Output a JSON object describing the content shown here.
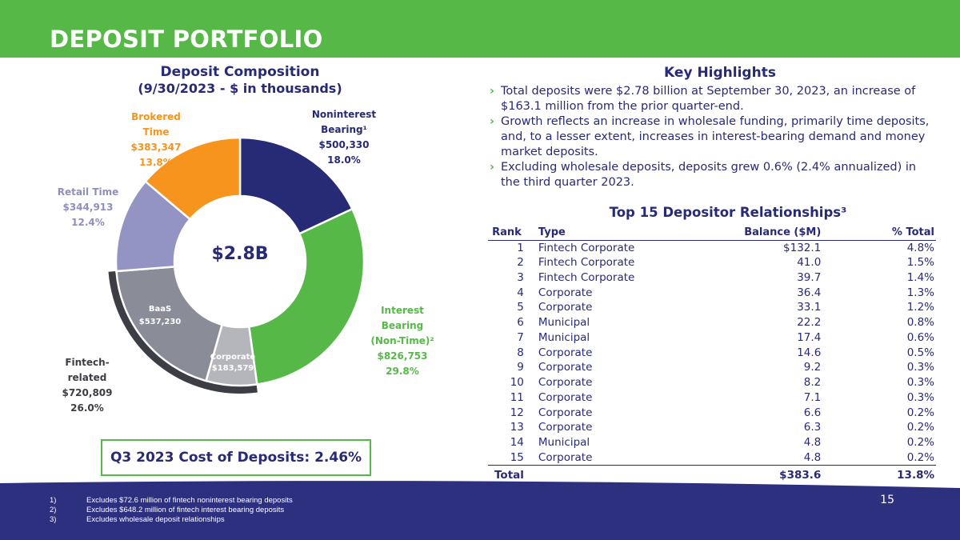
{
  "header": {
    "title": "DEPOSIT PORTFOLIO"
  },
  "composition": {
    "title": "Deposit Composition",
    "subtitle": "(9/30/2023 - $ in thousands)",
    "center_label": "$2.8B",
    "segments": [
      {
        "name_lines": [
          "Noninterest",
          "Bearing¹"
        ],
        "amount": "$500,330",
        "pct": "18.0%"
      },
      {
        "name_lines": [
          "Interest Bearing",
          "(Non-Time)²"
        ],
        "amount": "$826,753",
        "pct": "29.8%"
      },
      {
        "name_lines": [
          "Corporate"
        ],
        "amount": "$183,579"
      },
      {
        "name_lines": [
          "BaaS"
        ],
        "amount": "$537,230"
      },
      {
        "name_lines": [
          "Retail Time"
        ],
        "amount": "$344,913",
        "pct": "12.4%"
      },
      {
        "name_lines": [
          "Brokered Time"
        ],
        "amount": "$383,347",
        "pct": "13.8%"
      }
    ],
    "group": {
      "name": "Fintech-related",
      "amount": "$720,809",
      "pct": "26.0%"
    }
  },
  "chart_data": {
    "type": "pie",
    "title": "Deposit Composition (9/30/2023 - $ in thousands)",
    "center_label": "$2.8B",
    "categories": [
      "Noninterest Bearing",
      "Interest Bearing (Non-Time)",
      "Corporate",
      "BaaS",
      "Retail Time",
      "Brokered Time"
    ],
    "values": [
      500330,
      826753,
      183579,
      537230,
      344913,
      383347
    ],
    "colors": [
      "#272a75",
      "#56b947",
      "#b4b6bc",
      "#8a8d97",
      "#9394c3",
      "#f7941d"
    ],
    "group": {
      "name": "Fintech-related",
      "members": [
        "Corporate",
        "BaaS"
      ],
      "value": 720809,
      "color": "#3c3d45"
    }
  },
  "cost_box": {
    "text": "Q3 2023 Cost of Deposits: 2.46%"
  },
  "highlights": {
    "title": "Key Highlights",
    "bullets": [
      "Total deposits were $2.78 billion at September 30, 2023, an increase of $163.1 million from the prior quarter-end.",
      "Growth reflects an increase in wholesale funding, primarily time deposits, and, to a lesser extent, increases in interest-bearing demand and money market deposits.",
      "Excluding wholesale deposits, deposits grew 0.6% (2.4% annualized) in the third quarter 2023."
    ]
  },
  "top15": {
    "title": "Top 15 Depositor Relationships³",
    "headers": {
      "rank": "Rank",
      "type": "Type",
      "balance": "Balance ($M)",
      "pct": "% Total"
    },
    "rows": [
      {
        "rank": "1",
        "type": "Fintech Corporate",
        "balance": "$132.1",
        "pct": "4.8%"
      },
      {
        "rank": "2",
        "type": "Fintech Corporate",
        "balance": "41.0",
        "pct": "1.5%"
      },
      {
        "rank": "3",
        "type": "Fintech Corporate",
        "balance": "39.7",
        "pct": "1.4%"
      },
      {
        "rank": "4",
        "type": "Corporate",
        "balance": "36.4",
        "pct": "1.3%"
      },
      {
        "rank": "5",
        "type": "Corporate",
        "balance": "33.1",
        "pct": "1.2%"
      },
      {
        "rank": "6",
        "type": "Municipal",
        "balance": "22.2",
        "pct": "0.8%"
      },
      {
        "rank": "7",
        "type": "Municipal",
        "balance": "17.4",
        "pct": "0.6%"
      },
      {
        "rank": "8",
        "type": "Corporate",
        "balance": "14.6",
        "pct": "0.5%"
      },
      {
        "rank": "9",
        "type": "Corporate",
        "balance": "9.2",
        "pct": "0.3%"
      },
      {
        "rank": "10",
        "type": "Corporate",
        "balance": "8.2",
        "pct": "0.3%"
      },
      {
        "rank": "11",
        "type": "Corporate",
        "balance": "7.1",
        "pct": "0.3%"
      },
      {
        "rank": "12",
        "type": "Corporate",
        "balance": "6.6",
        "pct": "0.2%"
      },
      {
        "rank": "13",
        "type": "Corporate",
        "balance": "6.3",
        "pct": "0.2%"
      },
      {
        "rank": "14",
        "type": "Municipal",
        "balance": "4.8",
        "pct": "0.2%"
      },
      {
        "rank": "15",
        "type": "Corporate",
        "balance": "4.8",
        "pct": "0.2%"
      }
    ],
    "total": {
      "label": "Total",
      "balance": "$383.6",
      "pct": "13.8%"
    }
  },
  "footer": {
    "page_number": "15",
    "footnotes": [
      {
        "num": "1)",
        "text": "Excludes $72.6 million of fintech noninterest bearing deposits"
      },
      {
        "num": "2)",
        "text": "Excludes $648.2 million of fintech interest bearing deposits"
      },
      {
        "num": "3)",
        "text": "Excludes wholesale deposit relationships"
      }
    ],
    "color": "#2d2f7f"
  }
}
